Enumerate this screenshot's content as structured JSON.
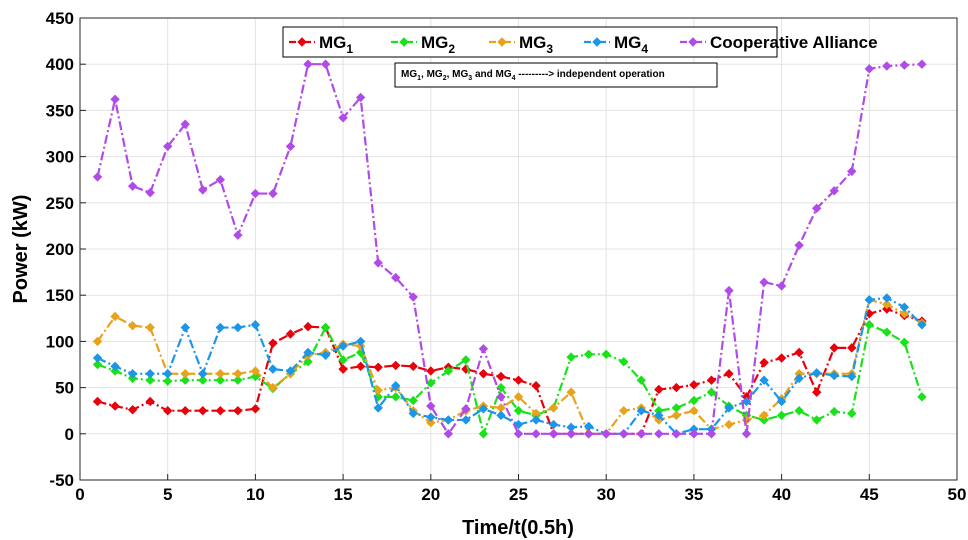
{
  "chart_data": {
    "type": "line",
    "xlabel": "Time/t(0.5h)",
    "ylabel": "Power (kW)",
    "xlim": [
      0,
      50
    ],
    "ylim": [
      -50,
      450
    ],
    "xticks": [
      0,
      5,
      10,
      15,
      20,
      25,
      30,
      35,
      40,
      45,
      50
    ],
    "yticks": [
      -50,
      0,
      50,
      100,
      150,
      200,
      250,
      300,
      350,
      400,
      450
    ],
    "grid": true,
    "legend_position": "top-center",
    "annotation": {
      "parts": [
        "MG",
        "1",
        ", MG",
        "2",
        ", MG",
        "3",
        " and MG",
        "4",
        " ---------> independent operation"
      ]
    },
    "x": [
      1,
      2,
      3,
      4,
      5,
      6,
      7,
      8,
      9,
      10,
      11,
      12,
      13,
      14,
      15,
      16,
      17,
      18,
      19,
      20,
      21,
      22,
      23,
      24,
      25,
      26,
      27,
      28,
      29,
      30,
      31,
      32,
      33,
      34,
      35,
      36,
      37,
      38,
      39,
      40,
      41,
      42,
      43,
      44,
      45,
      46,
      47,
      48
    ],
    "series": [
      {
        "name": "MG1",
        "label_main": "MG",
        "label_sub": "1",
        "color": "#e8000b",
        "marker": "diamond",
        "values": [
          35,
          30,
          26,
          35,
          25,
          25,
          25,
          25,
          25,
          27,
          98,
          108,
          116,
          115,
          70,
          73,
          72,
          74,
          73,
          68,
          72,
          70,
          65,
          62,
          58,
          52,
          0,
          0,
          0,
          0,
          0,
          0,
          48,
          50,
          53,
          58,
          65,
          40,
          77,
          82,
          88,
          45,
          93,
          93,
          130,
          135,
          128,
          122
        ]
      },
      {
        "name": "MG2",
        "label_main": "MG",
        "label_sub": "2",
        "color": "#1be11b",
        "marker": "diamond",
        "values": [
          75,
          68,
          60,
          58,
          57,
          58,
          58,
          58,
          58,
          62,
          49,
          65,
          78,
          115,
          80,
          88,
          40,
          40,
          36,
          55,
          68,
          80,
          0,
          50,
          25,
          20,
          28,
          83,
          86,
          86,
          78,
          58,
          25,
          28,
          36,
          45,
          30,
          20,
          15,
          20,
          25,
          15,
          24,
          22,
          118,
          110,
          99,
          40
        ]
      },
      {
        "name": "MG3",
        "label_main": "MG",
        "label_sub": "3",
        "color": "#e8a21b",
        "marker": "diamond",
        "values": [
          100,
          127,
          117,
          115,
          65,
          65,
          65,
          65,
          65,
          68,
          50,
          65,
          85,
          88,
          97,
          95,
          47,
          50,
          25,
          12,
          15,
          25,
          30,
          28,
          40,
          22,
          28,
          45,
          0,
          0,
          25,
          28,
          15,
          20,
          25,
          5,
          10,
          15,
          20,
          38,
          65,
          65,
          65,
          65,
          145,
          140,
          130,
          120
        ]
      },
      {
        "name": "MG4",
        "label_main": "MG",
        "label_sub": "4",
        "color": "#1b96e8",
        "marker": "diamond",
        "values": [
          82,
          73,
          65,
          65,
          65,
          115,
          65,
          115,
          115,
          118,
          70,
          68,
          88,
          85,
          95,
          100,
          28,
          52,
          22,
          18,
          15,
          15,
          27,
          20,
          10,
          15,
          10,
          7,
          8,
          0,
          0,
          25,
          20,
          0,
          5,
          5,
          28,
          35,
          58,
          35,
          60,
          66,
          63,
          62,
          145,
          147,
          137,
          118
        ]
      },
      {
        "name": "Cooperative Alliance",
        "label_main": "Cooperative Alliance",
        "label_sub": "",
        "color": "#b04be8",
        "marker": "diamond",
        "values": [
          278,
          362,
          268,
          261,
          311,
          335,
          264,
          275,
          215,
          260,
          260,
          311,
          400,
          400,
          342,
          364,
          185,
          169,
          148,
          30,
          0,
          27,
          92,
          40,
          0,
          0,
          0,
          0,
          0,
          0,
          0,
          0,
          0,
          0,
          0,
          0,
          155,
          0,
          164,
          160,
          204,
          244,
          263,
          284,
          395,
          398,
          399,
          400
        ]
      }
    ]
  }
}
